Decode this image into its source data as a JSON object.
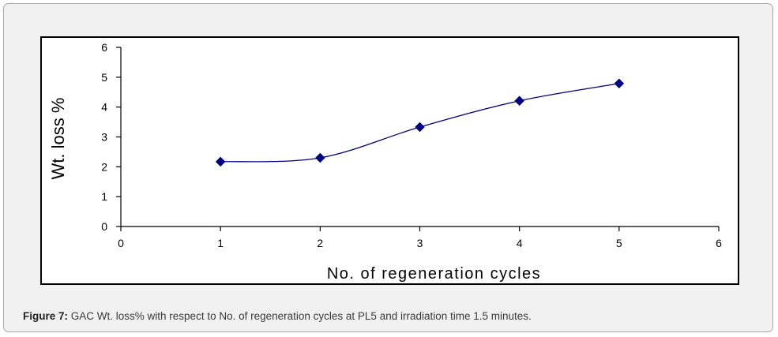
{
  "caption": {
    "label": "Figure 7:",
    "text": "GAC Wt. loss% with respect to No. of regeneration cycles at PL5 and irradiation time 1.5 minutes."
  },
  "colors": {
    "series": "#000080",
    "axis": "#000000",
    "caption_label": "#222222",
    "caption_text": "#3a3a3a"
  },
  "chart_data": {
    "type": "scatter",
    "title": "",
    "xlabel": "No. of regeneration cycles",
    "ylabel": "Wt. loss %",
    "xlim": [
      0,
      6
    ],
    "ylim": [
      0,
      6
    ],
    "x_ticks": [
      "0",
      "1",
      "2",
      "3",
      "4",
      "5",
      "6"
    ],
    "y_ticks": [
      "0",
      "1",
      "2",
      "3",
      "4",
      "5",
      "6"
    ],
    "grid": false,
    "legend": "none",
    "smoothed_line": true,
    "marker": "diamond",
    "series": [
      {
        "x": [
          1,
          2,
          3,
          4,
          5
        ],
        "y": [
          2.17,
          2.3,
          3.33,
          4.21,
          4.79
        ]
      }
    ]
  }
}
